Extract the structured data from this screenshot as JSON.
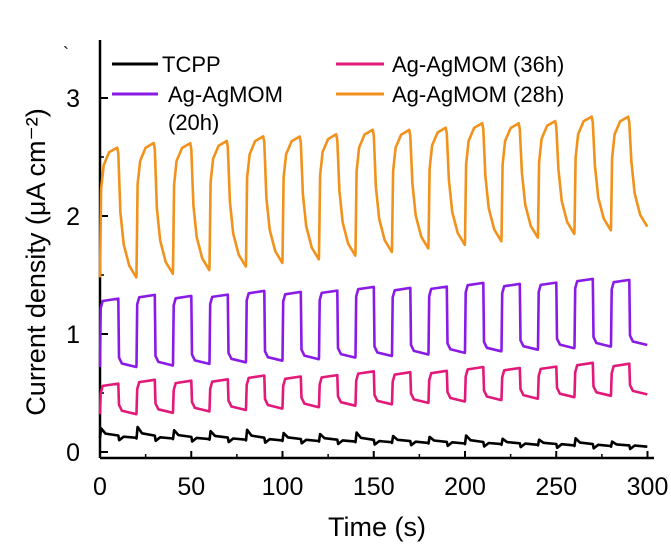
{
  "chart_data": {
    "type": "line",
    "title": "",
    "xlabel": "Time (s)",
    "ylabel": "Current density (μA cm⁻²)",
    "xlim": [
      0,
      300
    ],
    "ylim": [
      0,
      3.5
    ],
    "x_ticks": [
      0,
      50,
      100,
      150,
      200,
      250,
      300
    ],
    "x_tick_labels": [
      "0",
      "50",
      "100",
      "150",
      "200",
      "250",
      "300"
    ],
    "y_ticks": [
      0,
      1,
      2,
      3
    ],
    "y_tick_labels": [
      "0",
      "1",
      "2",
      "3"
    ],
    "grid": false,
    "legend_position": "top",
    "light_cycle_period_s": 20,
    "light_on_duration_s": 10,
    "series": [
      {
        "name": "TCPP",
        "color": "#000000",
        "on_values_start_end": [
          0.2,
          0.08
        ],
        "off_values_start_end": [
          0.12,
          0.04
        ],
        "shape": "small-spikes"
      },
      {
        "name": "Ag-AgMOM (20h)",
        "color": "#8A1BE6",
        "on_values_start_end": [
          1.3,
          1.47
        ],
        "off_values_start_end": [
          0.72,
          0.92
        ],
        "shape": "square-pulses"
      },
      {
        "name": "Ag-AgMOM (36h)",
        "color": "#E3197A",
        "on_values_start_end": [
          0.58,
          0.76
        ],
        "off_values_start_end": [
          0.32,
          0.5
        ],
        "shape": "square-pulses"
      },
      {
        "name": "Ag-AgMOM (28h)",
        "color": "#F0921C",
        "on_values_start_end": [
          2.58,
          2.86
        ],
        "off_values_start_end": [
          1.48,
          1.94
        ],
        "shape": "spike-decay"
      }
    ],
    "legend": [
      {
        "label": "TCPP",
        "series": 0
      },
      {
        "label": "Ag-AgMOM (36h)",
        "series": 2
      },
      {
        "label": "Ag-AgMOM",
        "label_cont": "(20h)",
        "series": 1
      },
      {
        "label": "Ag-AgMOM (28h)",
        "series": 3
      }
    ],
    "stray_mark": "`"
  }
}
